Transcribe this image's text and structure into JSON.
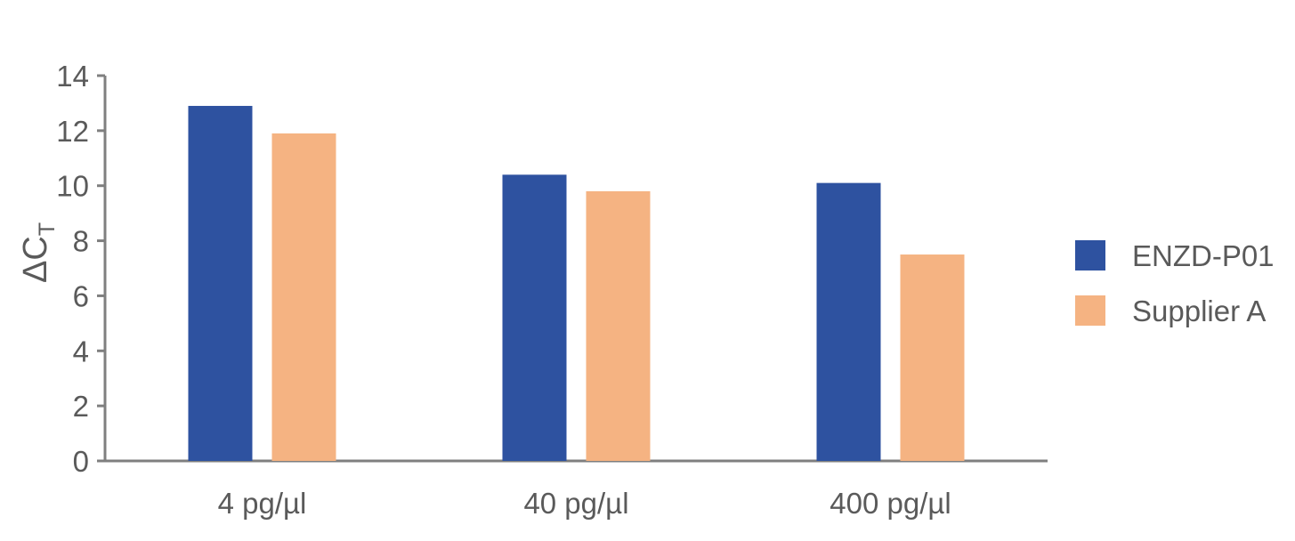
{
  "chart_data": {
    "type": "bar",
    "categories": [
      "4 pg/µl",
      "40 pg/µl",
      "400 pg/µl"
    ],
    "series": [
      {
        "name": "ENZD-P01",
        "color": "#2e52a0",
        "values": [
          12.9,
          10.4,
          10.1
        ]
      },
      {
        "name": "Supplier A",
        "color": "#f5b382",
        "values": [
          11.9,
          9.8,
          7.5
        ]
      }
    ],
    "title": "",
    "xlabel": "",
    "ylabel": {
      "main": "ΔC",
      "subscript": "T"
    },
    "ylim": [
      0,
      14
    ],
    "yticks": [
      0,
      2,
      4,
      6,
      8,
      10,
      12,
      14
    ],
    "grid": false,
    "legend_position": "right"
  }
}
